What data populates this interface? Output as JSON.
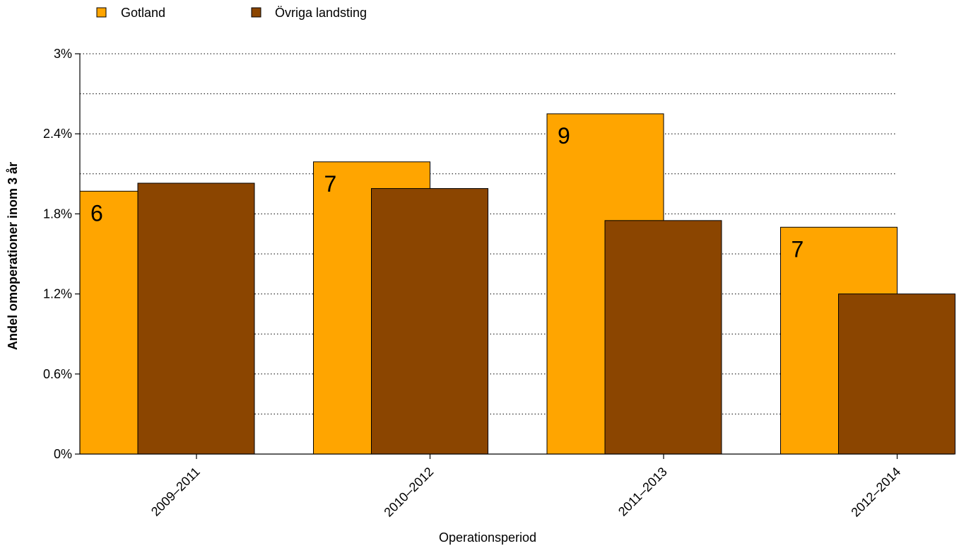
{
  "chart_data": {
    "type": "bar",
    "categories": [
      "2009–2011",
      "2010–2012",
      "2011–2013",
      "2012–2014"
    ],
    "series": [
      {
        "name": "Gotland",
        "values": [
          1.97,
          2.19,
          2.55,
          1.7
        ],
        "labels": [
          "6",
          "7",
          "9",
          "7"
        ],
        "color": "#FFA500"
      },
      {
        "name": "Övriga landsting",
        "values": [
          2.03,
          1.99,
          1.75,
          1.2
        ],
        "color": "#8B4500"
      }
    ],
    "xlabel": "Operationsperiod",
    "ylabel": "Andel omoperationer inom 3 år",
    "ylim": [
      0,
      3
    ],
    "yticks": [
      0,
      0.6,
      1.2,
      1.8,
      2.4,
      3
    ],
    "ytick_labels": [
      "0%",
      "0.6%",
      "1.2%",
      "1.8%",
      "2.4%",
      "3%"
    ],
    "grid": "horizontal dotted",
    "legend_position": "top-left"
  }
}
